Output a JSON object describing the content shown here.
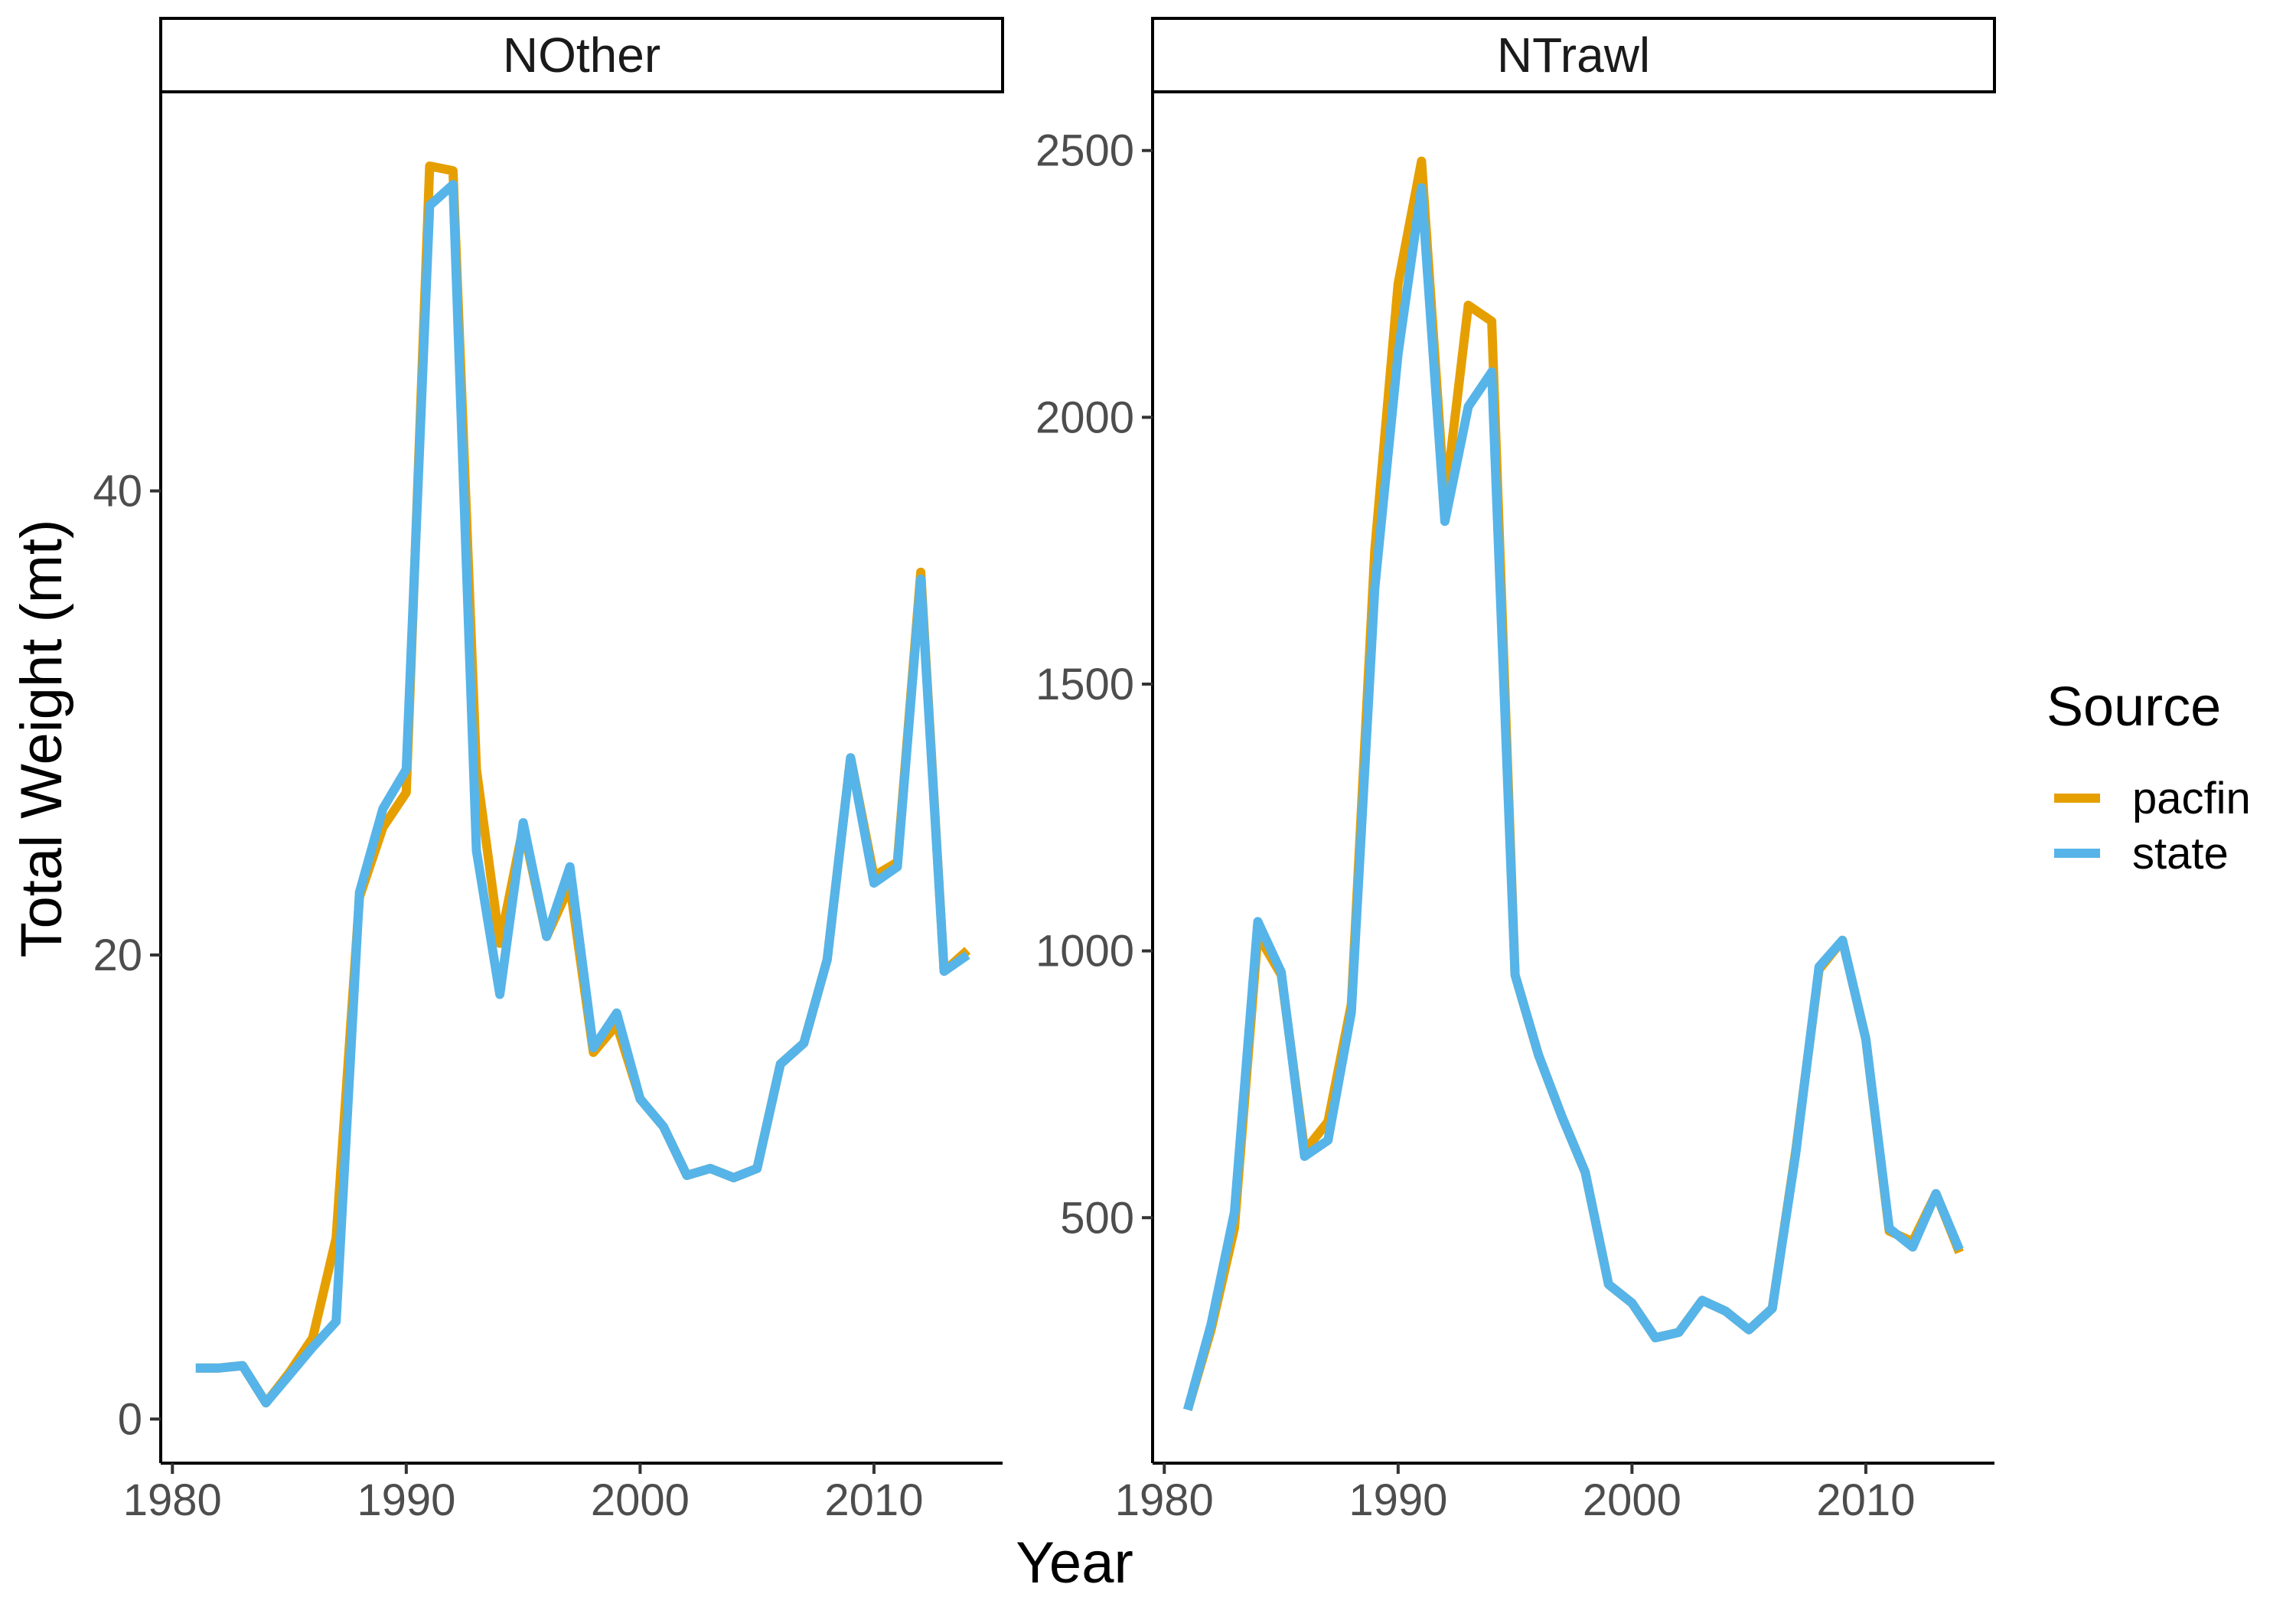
{
  "chart_data": {
    "type": "line",
    "xlabel": "Year",
    "ylabel": "Total Weight (mt)",
    "legend": {
      "title": "Source",
      "placement": "right",
      "entries": [
        {
          "name": "pacfin",
          "color": "#E69F00"
        },
        {
          "name": "state",
          "color": "#56B4E9"
        }
      ]
    },
    "grid": false,
    "panels": [
      {
        "title": "NOther",
        "xlim": [
          1979.5,
          2015.5
        ],
        "ylim": [
          -1.9,
          57.2
        ],
        "x_ticks": [
          1980,
          1990,
          2000,
          2010
        ],
        "y_ticks": [
          0,
          20,
          40
        ],
        "x": [
          1981,
          1982,
          1983,
          1984,
          1985,
          1986,
          1987,
          1988,
          1989,
          1990,
          1991,
          1992,
          1993,
          1994,
          1995,
          1996,
          1997,
          1998,
          1999,
          2000,
          2001,
          2002,
          2003,
          2004,
          2005,
          2006,
          2007,
          2008,
          2009,
          2010,
          2011,
          2012,
          2013,
          2014
        ],
        "series": [
          {
            "name": "pacfin",
            "values": [
              2.2,
              2.2,
              2.3,
              0.7,
              2.0,
              3.5,
              7.8,
              22.5,
              25.5,
              27.0,
              54.0,
              53.8,
              28.0,
              20.5,
              25.5,
              20.8,
              23.0,
              15.8,
              17.0,
              13.8,
              12.6,
              10.5,
              10.8,
              10.4,
              10.8,
              15.3,
              16.2,
              19.8,
              28.5,
              23.4,
              24.0,
              36.5,
              19.3,
              20.2
            ]
          },
          {
            "name": "state",
            "values": [
              2.2,
              2.2,
              2.3,
              0.7,
              1.9,
              3.1,
              4.2,
              22.7,
              26.3,
              28.0,
              52.3,
              53.2,
              24.5,
              18.3,
              25.7,
              20.8,
              23.8,
              16.0,
              17.5,
              13.8,
              12.6,
              10.5,
              10.8,
              10.4,
              10.8,
              15.3,
              16.2,
              19.8,
              28.5,
              23.1,
              23.8,
              36.2,
              19.3,
              20.0
            ]
          }
        ]
      },
      {
        "title": "NTrawl",
        "xlim": [
          1979.5,
          2015.5
        ],
        "ylim": [
          40,
          2610
        ],
        "x_ticks": [
          1980,
          1990,
          2000,
          2010
        ],
        "y_ticks": [
          500,
          1000,
          1500,
          2000,
          2500
        ],
        "x": [
          1981,
          1982,
          1983,
          1984,
          1985,
          1986,
          1987,
          1988,
          1989,
          1990,
          1991,
          1992,
          1993,
          1994,
          1995,
          1996,
          1997,
          1998,
          1999,
          2000,
          2001,
          2002,
          2003,
          2004,
          2005,
          2006,
          2007,
          2008,
          2009,
          2010,
          2011,
          2012,
          2013,
          2014
        ],
        "series": [
          {
            "name": "pacfin",
            "values": [
              140,
              290,
              480,
              1030,
              955,
              625,
              680,
              900,
              1750,
              2250,
              2480,
              1840,
              2210,
              2180,
              955,
              805,
              690,
              585,
              375,
              340,
              275,
              285,
              345,
              325,
              290,
              330,
              625,
              965,
              1020,
              835,
              475,
              455,
              545,
              435
            ]
          },
          {
            "name": "state",
            "values": [
              140,
              300,
              510,
              1055,
              960,
              615,
              645,
              885,
              1680,
              2120,
              2430,
              1805,
              2020,
              2085,
              955,
              805,
              690,
              585,
              375,
              340,
              275,
              285,
              345,
              325,
              290,
              330,
              620,
              970,
              1020,
              835,
              480,
              445,
              545,
              440
            ]
          }
        ]
      }
    ]
  }
}
